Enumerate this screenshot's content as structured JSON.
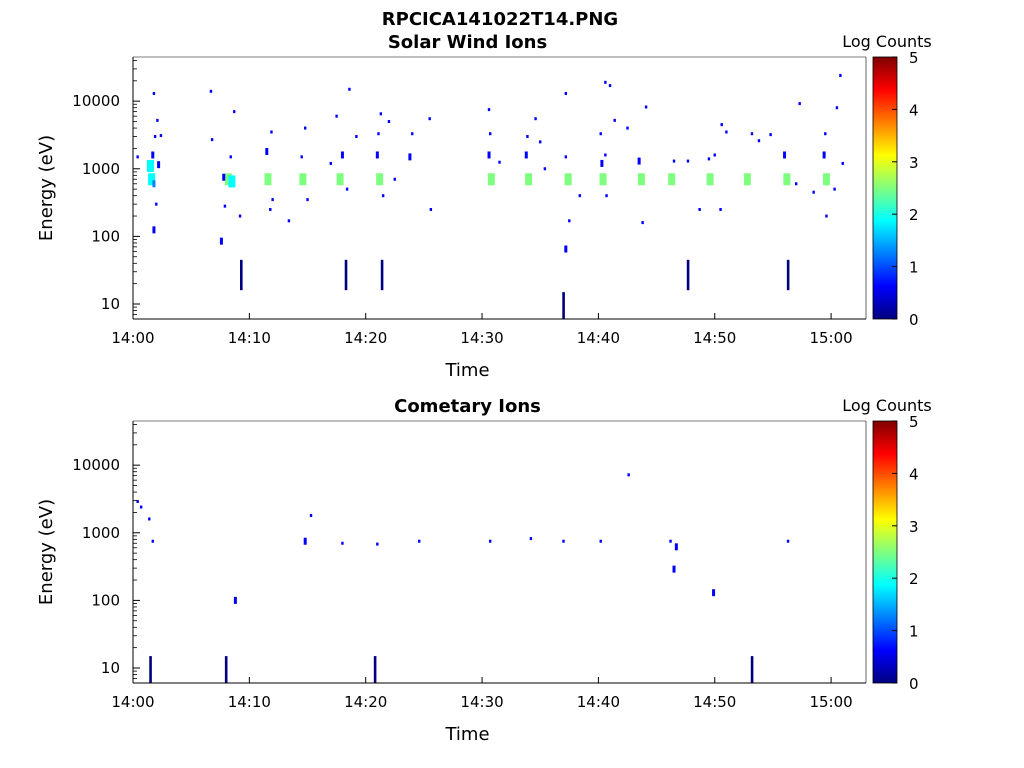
{
  "figure_title": "RPCICA141022T14.PNG",
  "colors": {
    "axis": "#000000",
    "colormap": [
      "#00007f",
      "#0000ff",
      "#007fff",
      "#00ffff",
      "#7fff7f",
      "#ffff00",
      "#ff7f00",
      "#ff0000",
      "#7f0000"
    ]
  },
  "chart_data": [
    {
      "type": "heatmap",
      "title": "Solar Wind Ions",
      "xlabel": "Time",
      "ylabel": "Energy (eV)",
      "yscale": "log",
      "xlim_minutes": [
        0,
        63
      ],
      "ylim": [
        6,
        45000
      ],
      "xticks": [
        {
          "minute": 0,
          "label": "14:00"
        },
        {
          "minute": 10,
          "label": "14:10"
        },
        {
          "minute": 20,
          "label": "14:20"
        },
        {
          "minute": 30,
          "label": "14:30"
        },
        {
          "minute": 40,
          "label": "14:40"
        },
        {
          "minute": 50,
          "label": "14:50"
        },
        {
          "minute": 60,
          "label": "15:00"
        }
      ],
      "yticks": [
        {
          "value": 10,
          "label": "10"
        },
        {
          "value": 100,
          "label": "100"
        },
        {
          "value": 1000,
          "label": "1000"
        },
        {
          "value": 10000,
          "label": "10000"
        }
      ],
      "colorbar": {
        "label": "Log Counts",
        "min": 0,
        "max": 5,
        "ticks": [
          "0",
          "1",
          "2",
          "3",
          "4",
          "5"
        ]
      },
      "points": [
        {
          "t": 1.6,
          "e": 700,
          "c": 0.7
        },
        {
          "t": 1.8,
          "e": 600,
          "c": 0.5
        },
        {
          "t": 1.5,
          "e": 1100,
          "c": 0.6
        },
        {
          "t": 1.7,
          "e": 1600,
          "c": 0.4
        },
        {
          "t": 2.2,
          "e": 1150,
          "c": 0.3
        },
        {
          "t": 1.9,
          "e": 3000,
          "c": 0.2
        },
        {
          "t": 2.1,
          "e": 5200,
          "c": 0.2
        },
        {
          "t": 1.8,
          "e": 13000,
          "c": 0.2
        },
        {
          "t": 2.0,
          "e": 300,
          "c": 0.2
        },
        {
          "t": 1.8,
          "e": 125,
          "c": 0.3
        },
        {
          "t": 0.4,
          "e": 1500,
          "c": 0.2
        },
        {
          "t": 2.4,
          "e": 3100,
          "c": 0.2
        },
        {
          "t": 8.2,
          "e": 700,
          "c": 0.8
        },
        {
          "t": 8.5,
          "e": 650,
          "c": 0.6
        },
        {
          "t": 7.8,
          "e": 750,
          "c": 0.4
        },
        {
          "t": 8.4,
          "e": 1500,
          "c": 0.2
        },
        {
          "t": 7.9,
          "e": 280,
          "c": 0.2
        },
        {
          "t": 7.6,
          "e": 85,
          "c": 0.3
        },
        {
          "t": 8.7,
          "e": 7000,
          "c": 0.2
        },
        {
          "t": 9.2,
          "e": 200,
          "c": 0.2
        },
        {
          "t": 6.7,
          "e": 14000,
          "c": 0.2
        },
        {
          "t": 6.8,
          "e": 2700,
          "c": 0.2
        },
        {
          "t": 11.6,
          "e": 700,
          "c": 0.9
        },
        {
          "t": 11.5,
          "e": 1800,
          "c": 0.3
        },
        {
          "t": 12.0,
          "e": 350,
          "c": 0.2
        },
        {
          "t": 11.9,
          "e": 3500,
          "c": 0.2
        },
        {
          "t": 13.4,
          "e": 170,
          "c": 0.2
        },
        {
          "t": 11.8,
          "e": 250,
          "c": 0.2
        },
        {
          "t": 14.6,
          "e": 700,
          "c": 0.8
        },
        {
          "t": 14.5,
          "e": 1500,
          "c": 0.2
        },
        {
          "t": 15.0,
          "e": 350,
          "c": 0.2
        },
        {
          "t": 14.8,
          "e": 4000,
          "c": 0.2
        },
        {
          "t": 17.8,
          "e": 700,
          "c": 0.8
        },
        {
          "t": 18.0,
          "e": 1600,
          "c": 0.3
        },
        {
          "t": 17.5,
          "e": 6000,
          "c": 0.2
        },
        {
          "t": 18.4,
          "e": 500,
          "c": 0.2
        },
        {
          "t": 18.6,
          "e": 15000,
          "c": 0.2
        },
        {
          "t": 17.0,
          "e": 1200,
          "c": 0.2
        },
        {
          "t": 19.2,
          "e": 3000,
          "c": 0.2
        },
        {
          "t": 21.2,
          "e": 700,
          "c": 0.8
        },
        {
          "t": 21.0,
          "e": 1600,
          "c": 0.4
        },
        {
          "t": 21.1,
          "e": 3300,
          "c": 0.2
        },
        {
          "t": 21.5,
          "e": 400,
          "c": 0.2
        },
        {
          "t": 21.3,
          "e": 6500,
          "c": 0.2
        },
        {
          "t": 22.0,
          "e": 5000,
          "c": 0.2
        },
        {
          "t": 22.5,
          "e": 700,
          "c": 0.2
        },
        {
          "t": 23.8,
          "e": 1500,
          "c": 0.3
        },
        {
          "t": 24.0,
          "e": 3300,
          "c": 0.2
        },
        {
          "t": 25.6,
          "e": 250,
          "c": 0.2
        },
        {
          "t": 25.5,
          "e": 5500,
          "c": 0.2
        },
        {
          "t": 30.8,
          "e": 700,
          "c": 0.9
        },
        {
          "t": 30.6,
          "e": 1600,
          "c": 0.4
        },
        {
          "t": 30.7,
          "e": 3300,
          "c": 0.2
        },
        {
          "t": 30.6,
          "e": 7500,
          "c": 0.2
        },
        {
          "t": 31.5,
          "e": 1250,
          "c": 0.2
        },
        {
          "t": 34.0,
          "e": 700,
          "c": 0.9
        },
        {
          "t": 33.8,
          "e": 1600,
          "c": 0.4
        },
        {
          "t": 33.9,
          "e": 3000,
          "c": 0.2
        },
        {
          "t": 35.0,
          "e": 2500,
          "c": 0.2
        },
        {
          "t": 35.4,
          "e": 1000,
          "c": 0.2
        },
        {
          "t": 34.6,
          "e": 5500,
          "c": 0.2
        },
        {
          "t": 37.4,
          "e": 700,
          "c": 0.9
        },
        {
          "t": 37.2,
          "e": 1500,
          "c": 0.2
        },
        {
          "t": 37.5,
          "e": 170,
          "c": 0.2
        },
        {
          "t": 38.4,
          "e": 400,
          "c": 0.2
        },
        {
          "t": 37.2,
          "e": 13000,
          "c": 0.2
        },
        {
          "t": 37.2,
          "e": 65,
          "c": 0.3
        },
        {
          "t": 40.4,
          "e": 700,
          "c": 0.9
        },
        {
          "t": 40.3,
          "e": 1200,
          "c": 0.4
        },
        {
          "t": 40.6,
          "e": 1600,
          "c": 0.2
        },
        {
          "t": 40.7,
          "e": 400,
          "c": 0.2
        },
        {
          "t": 40.2,
          "e": 3300,
          "c": 0.2
        },
        {
          "t": 40.6,
          "e": 19000,
          "c": 0.2
        },
        {
          "t": 41.0,
          "e": 17000,
          "c": 0.2
        },
        {
          "t": 41.4,
          "e": 5200,
          "c": 0.2
        },
        {
          "t": 42.5,
          "e": 4000,
          "c": 0.2
        },
        {
          "t": 43.7,
          "e": 700,
          "c": 0.9
        },
        {
          "t": 43.5,
          "e": 1300,
          "c": 0.3
        },
        {
          "t": 43.8,
          "e": 160,
          "c": 0.2
        },
        {
          "t": 44.1,
          "e": 8200,
          "c": 0.2
        },
        {
          "t": 46.3,
          "e": 700,
          "c": 0.8
        },
        {
          "t": 46.5,
          "e": 1300,
          "c": 0.2
        },
        {
          "t": 47.7,
          "e": 1300,
          "c": 0.2
        },
        {
          "t": 48.7,
          "e": 250,
          "c": 0.2
        },
        {
          "t": 49.6,
          "e": 700,
          "c": 0.8
        },
        {
          "t": 49.5,
          "e": 1400,
          "c": 0.2
        },
        {
          "t": 50.0,
          "e": 1600,
          "c": 0.2
        },
        {
          "t": 50.5,
          "e": 250,
          "c": 0.2
        },
        {
          "t": 50.6,
          "e": 4500,
          "c": 0.2
        },
        {
          "t": 51.0,
          "e": 3500,
          "c": 0.2
        },
        {
          "t": 52.8,
          "e": 700,
          "c": 0.8
        },
        {
          "t": 53.2,
          "e": 3300,
          "c": 0.2
        },
        {
          "t": 53.8,
          "e": 2600,
          "c": 0.2
        },
        {
          "t": 54.8,
          "e": 3200,
          "c": 0.2
        },
        {
          "t": 56.2,
          "e": 700,
          "c": 0.8
        },
        {
          "t": 56.0,
          "e": 1600,
          "c": 0.4
        },
        {
          "t": 57.0,
          "e": 600,
          "c": 0.2
        },
        {
          "t": 57.3,
          "e": 9200,
          "c": 0.2
        },
        {
          "t": 58.5,
          "e": 450,
          "c": 0.2
        },
        {
          "t": 59.6,
          "e": 700,
          "c": 0.8
        },
        {
          "t": 59.4,
          "e": 1600,
          "c": 0.4
        },
        {
          "t": 59.5,
          "e": 3300,
          "c": 0.2
        },
        {
          "t": 59.6,
          "e": 200,
          "c": 0.2
        },
        {
          "t": 60.5,
          "e": 8000,
          "c": 0.2
        },
        {
          "t": 61.0,
          "e": 1200,
          "c": 0.2
        },
        {
          "t": 60.8,
          "e": 24000,
          "c": 0.2
        },
        {
          "t": 60.3,
          "e": 500,
          "c": 0.2
        }
      ],
      "bars": [
        {
          "t": 9.3,
          "e_min": 16,
          "e_max": 45,
          "c": 0.2
        },
        {
          "t": 18.3,
          "e_min": 16,
          "e_max": 45,
          "c": 0.2
        },
        {
          "t": 21.4,
          "e_min": 16,
          "e_max": 45,
          "c": 0.2
        },
        {
          "t": 47.7,
          "e_min": 16,
          "e_max": 45,
          "c": 0.2
        },
        {
          "t": 56.3,
          "e_min": 16,
          "e_max": 45,
          "c": 0.2
        },
        {
          "t": 37.0,
          "e_min": 6,
          "e_max": 15,
          "c": 0.2
        }
      ]
    },
    {
      "type": "heatmap",
      "title": "Cometary Ions",
      "xlabel": "Time",
      "ylabel": "Energy (eV)",
      "yscale": "log",
      "xlim_minutes": [
        0,
        63
      ],
      "ylim": [
        6,
        45000
      ],
      "xticks": [
        {
          "minute": 0,
          "label": "14:00"
        },
        {
          "minute": 10,
          "label": "14:10"
        },
        {
          "minute": 20,
          "label": "14:20"
        },
        {
          "minute": 30,
          "label": "14:30"
        },
        {
          "minute": 40,
          "label": "14:40"
        },
        {
          "minute": 50,
          "label": "14:50"
        },
        {
          "minute": 60,
          "label": "15:00"
        }
      ],
      "yticks": [
        {
          "value": 10,
          "label": "10"
        },
        {
          "value": 100,
          "label": "100"
        },
        {
          "value": 1000,
          "label": "1000"
        },
        {
          "value": 10000,
          "label": "10000"
        }
      ],
      "colorbar": {
        "label": "Log Counts",
        "min": 0,
        "max": 5,
        "ticks": [
          "0",
          "1",
          "2",
          "3",
          "4",
          "5"
        ]
      },
      "points": [
        {
          "t": 0.4,
          "e": 2900,
          "c": 0.2
        },
        {
          "t": 0.7,
          "e": 2400,
          "c": 0.2
        },
        {
          "t": 1.4,
          "e": 1600,
          "c": 0.2
        },
        {
          "t": 1.7,
          "e": 750,
          "c": 0.2
        },
        {
          "t": 8.8,
          "e": 100,
          "c": 0.3
        },
        {
          "t": 14.8,
          "e": 750,
          "c": 0.3
        },
        {
          "t": 15.3,
          "e": 1800,
          "c": 0.2
        },
        {
          "t": 18.0,
          "e": 700,
          "c": 0.2
        },
        {
          "t": 21.0,
          "e": 680,
          "c": 0.2
        },
        {
          "t": 24.6,
          "e": 750,
          "c": 0.2
        },
        {
          "t": 30.7,
          "e": 750,
          "c": 0.2
        },
        {
          "t": 34.2,
          "e": 820,
          "c": 0.2
        },
        {
          "t": 37.0,
          "e": 750,
          "c": 0.2
        },
        {
          "t": 40.2,
          "e": 750,
          "c": 0.2
        },
        {
          "t": 42.6,
          "e": 7200,
          "c": 0.2
        },
        {
          "t": 46.2,
          "e": 750,
          "c": 0.2
        },
        {
          "t": 46.7,
          "e": 620,
          "c": 0.3
        },
        {
          "t": 46.5,
          "e": 290,
          "c": 0.3
        },
        {
          "t": 49.9,
          "e": 130,
          "c": 0.3
        },
        {
          "t": 56.3,
          "e": 750,
          "c": 0.2
        }
      ],
      "bars": [
        {
          "t": 1.5,
          "e_min": 6,
          "e_max": 15,
          "c": 0.2
        },
        {
          "t": 8.0,
          "e_min": 6,
          "e_max": 15,
          "c": 0.2
        },
        {
          "t": 20.8,
          "e_min": 6,
          "e_max": 15,
          "c": 0.2
        },
        {
          "t": 53.2,
          "e_min": 6,
          "e_max": 15,
          "c": 0.2
        }
      ]
    }
  ]
}
